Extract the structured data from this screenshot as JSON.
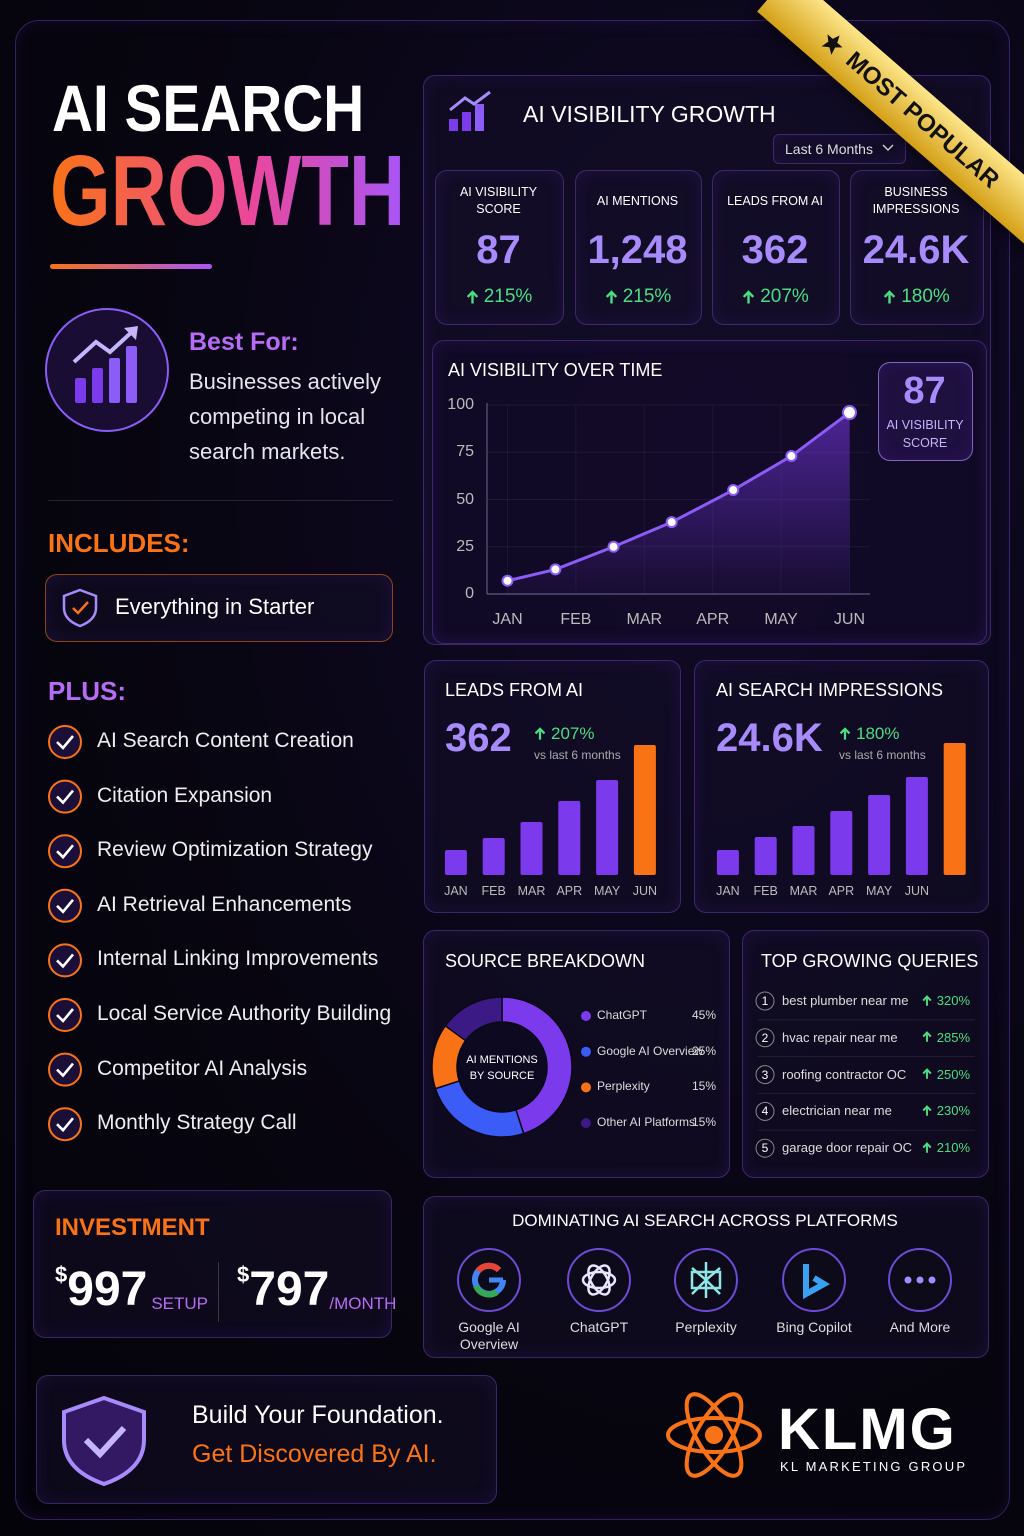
{
  "header": {
    "title_line1": "AI SEARCH",
    "title_line2": "GROWTH"
  },
  "ribbon": "MOST POPULAR",
  "best_for": {
    "label": "Best For:",
    "text": "Businesses actively competing in local search markets."
  },
  "includes": {
    "label": "INCLUDES:",
    "item": "Everything in Starter"
  },
  "plus": {
    "label": "PLUS:",
    "items": [
      "AI Search Content Creation",
      "Citation Expansion",
      "Review Optimization Strategy",
      "AI Retrieval Enhancements",
      "Internal Linking Improvements",
      "Local Service Authority Building",
      "Competitor AI Analysis",
      "Monthly Strategy Call"
    ]
  },
  "investment": {
    "label": "INVESTMENT",
    "setup": {
      "currency": "$",
      "amount": "997",
      "unit": "SETUP"
    },
    "monthly": {
      "currency": "$",
      "amount": "797",
      "unit": "/MONTH"
    }
  },
  "tagline": {
    "line1": "Build Your Foundation.",
    "line2": "Get Discovered By AI."
  },
  "brand": {
    "name": "KLMG",
    "subtitle": "KL MARKETING GROUP"
  },
  "dashboard": {
    "title": "AI VISIBILITY GROWTH",
    "period": "Last 6 Months"
  },
  "kpis": [
    {
      "label": "AI VISIBILITY SCORE",
      "value": "87",
      "change": "215%"
    },
    {
      "label": "AI MENTIONS",
      "value": "1,248",
      "change": "215%"
    },
    {
      "label": "LEADS FROM AI",
      "value": "362",
      "change": "207%"
    },
    {
      "label": "BUSINESS IMPRESSIONS",
      "value": "24.6K",
      "change": "180%"
    }
  ],
  "chart_data": [
    {
      "type": "line",
      "title": "AI VISIBILITY OVER TIME",
      "x": [
        0,
        0.7,
        1.55,
        2.4,
        3.3,
        4.15,
        5
      ],
      "values": [
        7,
        13,
        25,
        38,
        55,
        73,
        96
      ],
      "xlim": [
        -0.3,
        5.3
      ],
      "xticks": [
        {
          "value": 0,
          "label": "JAN"
        },
        {
          "value": 1,
          "label": "FEB"
        },
        {
          "value": 2,
          "label": "MAR"
        },
        {
          "value": 3,
          "label": "APR"
        },
        {
          "value": 4,
          "label": "MAY"
        },
        {
          "value": 5,
          "label": "JUN"
        }
      ],
      "ylim": [
        0,
        100
      ],
      "yticks": [
        0,
        25,
        50,
        75,
        100
      ],
      "grid": true,
      "color": "#8b5cf6",
      "badge": {
        "value": "87",
        "label": "AI VISIBILITY SCORE"
      }
    },
    {
      "type": "bar",
      "title": "LEADS FROM AI",
      "headline": "362",
      "change": "207%",
      "note": "vs last 6 months",
      "categories": [
        "JAN",
        "FEB",
        "MAR",
        "APR",
        "MAY",
        "JUN"
      ],
      "values": [
        25,
        37,
        53,
        74,
        95,
        130
      ],
      "ylim": [
        0,
        140
      ],
      "colors": [
        "#7c3aed",
        "#7c3aed",
        "#7c3aed",
        "#7c3aed",
        "#7c3aed",
        "#f97316"
      ]
    },
    {
      "type": "bar",
      "title": "AI SEARCH IMPRESSIONS",
      "headline": "24.6K",
      "change": "180%",
      "note": "vs last 6 months",
      "categories": [
        "JAN",
        "FEB",
        "MAR",
        "APR",
        "MAY",
        "JUN",
        null
      ],
      "values": [
        25,
        38,
        49,
        64,
        80,
        98,
        132
      ],
      "ylim": [
        0,
        140
      ],
      "colors": [
        "#7c3aed",
        "#7c3aed",
        "#7c3aed",
        "#7c3aed",
        "#7c3aed",
        "#7c3aed",
        "#f97316"
      ]
    },
    {
      "type": "pie",
      "title": "SOURCE BREAKDOWN",
      "center_label": "AI MENTIONS BY SOURCE",
      "categories": [
        "ChatGPT",
        "Google AI Overview",
        "Perplexity",
        "Other AI Platforms"
      ],
      "values": [
        45,
        25,
        15,
        15
      ],
      "value_labels": [
        "45%",
        "25%",
        "15%",
        "15%"
      ],
      "colors": [
        "#7c3aed",
        "#3b5cf6",
        "#f97316",
        "#3b1a86"
      ]
    }
  ],
  "queries": {
    "title": "TOP GROWING QUERIES",
    "items": [
      {
        "rank": "1",
        "query": "best plumber near me",
        "change": "320%"
      },
      {
        "rank": "2",
        "query": "hvac repair near me",
        "change": "285%"
      },
      {
        "rank": "3",
        "query": "roofing contractor OC",
        "change": "250%"
      },
      {
        "rank": "4",
        "query": "electrician near me",
        "change": "230%"
      },
      {
        "rank": "5",
        "query": "garage door repair OC",
        "change": "210%"
      }
    ]
  },
  "platforms": {
    "title": "DOMINATING AI SEARCH ACROSS PLATFORMS",
    "items": [
      "Google AI Overview",
      "ChatGPT",
      "Perplexity",
      "Bing Copilot",
      "And More"
    ]
  }
}
